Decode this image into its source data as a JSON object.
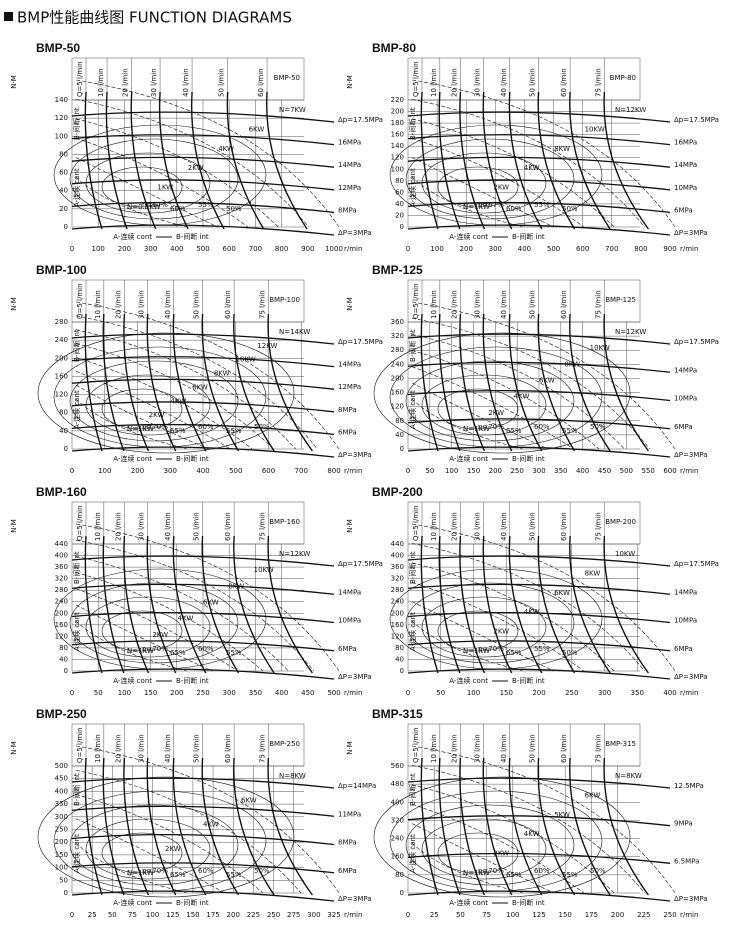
{
  "header": {
    "title": "BMP性能曲线图 FUNCTION DIAGRAMS"
  },
  "units": {
    "torque": "N·M",
    "speed": "r/min"
  },
  "legend": {
    "a": "A-连续 cont",
    "b": "B-间断 int"
  },
  "panels": [
    {
      "name": "BMP-50",
      "box": "BMP-50",
      "yticks": [
        0,
        20,
        40,
        60,
        80,
        100,
        120,
        140
      ],
      "xticks": [
        0,
        100,
        200,
        300,
        400,
        500,
        600,
        700,
        800,
        900,
        1000
      ],
      "flows": [
        "Q=5 l/min",
        "10 l/min",
        "20 l/min",
        "30 l/min",
        "40 l/min",
        "50 l/min",
        "60 l/min"
      ],
      "pressures": [
        "Δp=17.5MPa",
        "16MPa",
        "14MPa",
        "12MPa",
        "8MPa",
        "ΔP=3MPa"
      ],
      "powers": [
        "N=7KW",
        "6KW",
        "4KW",
        "2KW",
        "1KW",
        "N=0.5KW"
      ],
      "efficiencies": [
        "η=67%",
        "60%",
        "55%",
        "50%"
      ]
    },
    {
      "name": "BMP-80",
      "box": "BMP-80",
      "yticks": [
        0,
        20,
        40,
        60,
        80,
        100,
        120,
        140,
        160,
        180,
        200,
        220
      ],
      "xticks": [
        0,
        100,
        200,
        300,
        400,
        500,
        600,
        700,
        800,
        900
      ],
      "flows": [
        "Q=5 l/min",
        "10 l/min",
        "20 l/min",
        "30 l/min",
        "40 l/min",
        "50 l/min",
        "60 l/min",
        "75 l/min"
      ],
      "pressures": [
        "Δp=17.5MPa",
        "16MPa",
        "14MPa",
        "10MPa",
        "6MPa",
        "ΔP=3MPa"
      ],
      "powers": [
        "N=12KW",
        "10KW",
        "8KW",
        "4KW",
        "2KW",
        "N=1KW"
      ],
      "efficiencies": [
        "η=67%",
        "60%",
        "55%",
        "50%"
      ]
    },
    {
      "name": "BMP-100",
      "box": "BMP-100",
      "yticks": [
        0,
        40,
        80,
        120,
        160,
        200,
        240,
        280
      ],
      "xticks": [
        0,
        100,
        200,
        300,
        400,
        500,
        600,
        700,
        800
      ],
      "flows": [
        "Q=5 l/min",
        "10 l/min",
        "20 l/min",
        "30 l/min",
        "40 l/min",
        "50 l/min",
        "60 l/min",
        "75 l/min"
      ],
      "pressures": [
        "Δp=17.5MPa",
        "14MPa",
        "12MPa",
        "8MPa",
        "6MPa",
        "ΔP=3MPa"
      ],
      "powers": [
        "N=14KW",
        "12KW",
        "10KW",
        "8KW",
        "6KW",
        "4KW",
        "2KW",
        "N=1KW"
      ],
      "efficiencies": [
        "η=70%",
        "65%",
        "60%",
        "55%",
        "50%"
      ]
    },
    {
      "name": "BMP-125",
      "box": "BMP-125",
      "yticks": [
        0,
        40,
        80,
        120,
        160,
        200,
        240,
        280,
        320,
        360
      ],
      "xticks": [
        0,
        50,
        100,
        150,
        200,
        250,
        300,
        350,
        400,
        450,
        500,
        550,
        600
      ],
      "flows": [
        "Q=5 l/min",
        "10 l/min",
        "20 l/min",
        "30 l/min",
        "40 l/min",
        "50 l/min",
        "60 l/min",
        "75 l/min"
      ],
      "pressures": [
        "Δp=17.5MPa",
        "14MPa",
        "10MPa",
        "6MPa",
        "ΔP=3MPa"
      ],
      "powers": [
        "N=12KW",
        "10KW",
        "8KW",
        "6KW",
        "4KW",
        "2KW",
        "N=1KW"
      ],
      "efficiencies": [
        "η=70%",
        "65%",
        "60%",
        "55%",
        "50%"
      ]
    },
    {
      "name": "BMP-160",
      "box": "BMP-160",
      "yticks": [
        0,
        40,
        80,
        120,
        160,
        200,
        240,
        280,
        320,
        360,
        400,
        440
      ],
      "xticks": [
        0,
        50,
        100,
        150,
        200,
        250,
        300,
        350,
        400,
        450,
        500
      ],
      "flows": [
        "Q=5 l/min",
        "10 l/min",
        "20 l/min",
        "30 l/min",
        "40 l/min",
        "50 l/min",
        "60 l/min",
        "75 l/min"
      ],
      "pressures": [
        "Δp=17.5MPa",
        "14MPa",
        "10MPa",
        "6MPa",
        "ΔP=3MPa"
      ],
      "powers": [
        "N=12KW",
        "10KW",
        "8KW",
        "6KW",
        "4KW",
        "2KW",
        "N=1KW"
      ],
      "efficiencies": [
        "η=70%",
        "65%",
        "60%",
        "55%"
      ]
    },
    {
      "name": "BMP-200",
      "box": "BMP-200",
      "yticks": [
        0,
        40,
        80,
        120,
        160,
        200,
        240,
        280,
        320,
        360,
        400,
        440
      ],
      "xticks": [
        0,
        50,
        100,
        150,
        200,
        250,
        300,
        350,
        400
      ],
      "flows": [
        "Q=5 l/min",
        "10 l/min",
        "20 l/min",
        "30 l/min",
        "40 l/min",
        "50 l/min",
        "60 l/min",
        "75 l/min"
      ],
      "pressures": [
        "Δp=17.5MPa",
        "14MPa",
        "10MPa",
        "6MPa",
        "ΔP=3MPa"
      ],
      "powers": [
        "10KW",
        "8KW",
        "6KW",
        "4KW",
        "2KW",
        "N=1KW"
      ],
      "efficiencies": [
        "η=70%",
        "65%",
        "55%",
        "50%"
      ]
    },
    {
      "name": "BMP-250",
      "box": "BMP-250",
      "yticks": [
        0,
        50,
        100,
        150,
        200,
        250,
        300,
        350,
        400,
        450,
        500
      ],
      "xticks": [
        0,
        25,
        50,
        75,
        100,
        125,
        150,
        175,
        200,
        225,
        250,
        275,
        300,
        325
      ],
      "flows": [
        "Q=5 l/min",
        "10 l/min",
        "20 l/min",
        "30 l/min",
        "40 l/min",
        "50 l/min",
        "60 l/min",
        "75 l/min"
      ],
      "pressures": [
        "Δp=14MPa",
        "11MPa",
        "8MPa",
        "6MPa",
        "ΔP=3MPa"
      ],
      "powers": [
        "N=8KW",
        "6KW",
        "4KW",
        "2KW",
        "N=1KW"
      ],
      "efficiencies": [
        "η=70%",
        "65%",
        "60%",
        "55%",
        "50%"
      ]
    },
    {
      "name": "BMP-315",
      "box": "BMP-315",
      "yticks": [
        0,
        80,
        160,
        240,
        320,
        400,
        480,
        560
      ],
      "xticks": [
        0,
        25,
        50,
        75,
        100,
        125,
        150,
        175,
        200,
        225,
        250
      ],
      "flows": [
        "Q=5 l/min",
        "10 l/min",
        "20 l/min",
        "30 l/min",
        "40 l/min",
        "50 l/min",
        "60 l/min",
        "75 l/min"
      ],
      "pressures": [
        "12.5MPa",
        "9MPa",
        "6.5MPa",
        "ΔP=3MPa"
      ],
      "powers": [
        "N=8KW",
        "6KW",
        "5KW",
        "4KW",
        "2KW",
        "N=1KW"
      ],
      "efficiencies": [
        "η=70%",
        "65%",
        "60%",
        "55%",
        "50%"
      ]
    }
  ]
}
